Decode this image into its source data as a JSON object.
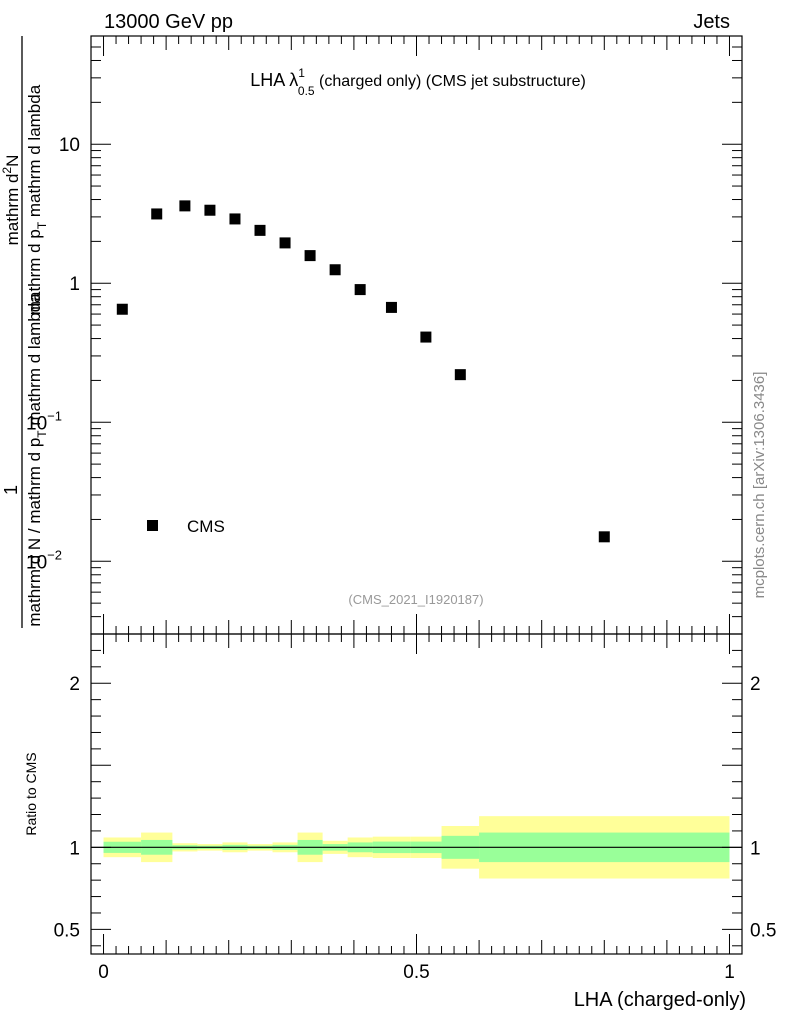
{
  "header": {
    "left": "13000 GeV pp",
    "right": "Jets"
  },
  "title": {
    "main": "LHA λ",
    "sup": "1",
    "sub": "0.5",
    "rest": " (charged only) (CMS jet substructure)"
  },
  "ylabel_main": {
    "one": "1",
    "denominator": "mathrm d N / mathrm d p",
    "denominator_sub": "T",
    "denominator_rest": " mathrm d lambda",
    "numerator": "mathrm d",
    "numerator_sup": "2",
    "numerator_rest": "N",
    "numerator_line2": "mathrm d p",
    "numerator_line2_sub": "T",
    "numerator_line2_rest": " mathrm d lambda"
  },
  "ylabel_ratio": "Ratio to CMS",
  "xlabel": "LHA (charged-only)",
  "watermark": "mcplots.cern.ch [arXiv:1306.3436]",
  "analysis_id": "(CMS_2021_I1920187)",
  "legend": {
    "label": "CMS",
    "placement": "bottom-left"
  },
  "colors": {
    "band_inner": "#99ff99",
    "band_outer": "#ffff99",
    "marker": "#000000"
  },
  "chart_data": [
    {
      "type": "scatter",
      "panel": "main",
      "yscale": "log",
      "xlim": [
        -0.02,
        1.02
      ],
      "ylim": [
        0.003,
        60
      ],
      "yticks": [
        {
          "value": 10,
          "label": "10"
        },
        {
          "value": 1,
          "label": "1"
        },
        {
          "value": 0.1,
          "label": "10",
          "sup": "−1"
        },
        {
          "value": 0.01,
          "label": "10",
          "sup": "−2"
        }
      ],
      "series": [
        {
          "name": "CMS",
          "x": [
            0.03,
            0.085,
            0.13,
            0.17,
            0.21,
            0.25,
            0.29,
            0.33,
            0.37,
            0.41,
            0.46,
            0.515,
            0.57,
            0.8
          ],
          "y": [
            0.65,
            3.15,
            3.6,
            3.35,
            2.9,
            2.4,
            1.95,
            1.58,
            1.25,
            0.9,
            0.67,
            0.41,
            0.22,
            0.015
          ]
        }
      ]
    },
    {
      "type": "area",
      "panel": "ratio",
      "xlim": [
        -0.02,
        1.02
      ],
      "ylim": [
        0.35,
        2.3
      ],
      "yticks": [
        {
          "value": 2,
          "label": "2"
        },
        {
          "value": 1,
          "label": "1"
        },
        {
          "value": 0.5,
          "label": "0.5"
        }
      ],
      "xticks": [
        {
          "value": 0,
          "label": "0"
        },
        {
          "value": 0.5,
          "label": "0.5"
        },
        {
          "value": 1,
          "label": "1"
        }
      ],
      "reference_line": 1,
      "bins": [
        {
          "lo": 0.0,
          "hi": 0.06,
          "inner": [
            0.966,
            1.034
          ],
          "outer": [
            0.94,
            1.06
          ]
        },
        {
          "lo": 0.06,
          "hi": 0.11,
          "inner": [
            0.955,
            1.045
          ],
          "outer": [
            0.91,
            1.09
          ]
        },
        {
          "lo": 0.11,
          "hi": 0.15,
          "inner": [
            0.987,
            1.013
          ],
          "outer": [
            0.975,
            1.025
          ]
        },
        {
          "lo": 0.15,
          "hi": 0.19,
          "inner": [
            0.99,
            1.01
          ],
          "outer": [
            0.98,
            1.02
          ]
        },
        {
          "lo": 0.19,
          "hi": 0.23,
          "inner": [
            0.985,
            1.015
          ],
          "outer": [
            0.97,
            1.03
          ]
        },
        {
          "lo": 0.23,
          "hi": 0.27,
          "inner": [
            0.99,
            1.01
          ],
          "outer": [
            0.98,
            1.02
          ]
        },
        {
          "lo": 0.27,
          "hi": 0.31,
          "inner": [
            0.985,
            1.015
          ],
          "outer": [
            0.97,
            1.03
          ]
        },
        {
          "lo": 0.31,
          "hi": 0.35,
          "inner": [
            0.955,
            1.045
          ],
          "outer": [
            0.91,
            1.09
          ]
        },
        {
          "lo": 0.35,
          "hi": 0.39,
          "inner": [
            0.98,
            1.02
          ],
          "outer": [
            0.96,
            1.04
          ]
        },
        {
          "lo": 0.39,
          "hi": 0.43,
          "inner": [
            0.97,
            1.03
          ],
          "outer": [
            0.94,
            1.06
          ]
        },
        {
          "lo": 0.43,
          "hi": 0.49,
          "inner": [
            0.965,
            1.035
          ],
          "outer": [
            0.935,
            1.065
          ]
        },
        {
          "lo": 0.49,
          "hi": 0.54,
          "inner": [
            0.965,
            1.035
          ],
          "outer": [
            0.935,
            1.065
          ]
        },
        {
          "lo": 0.54,
          "hi": 0.6,
          "inner": [
            0.93,
            1.07
          ],
          "outer": [
            0.87,
            1.13
          ]
        },
        {
          "lo": 0.6,
          "hi": 1.0,
          "inner": [
            0.91,
            1.09
          ],
          "outer": [
            0.81,
            1.19
          ]
        }
      ]
    }
  ]
}
